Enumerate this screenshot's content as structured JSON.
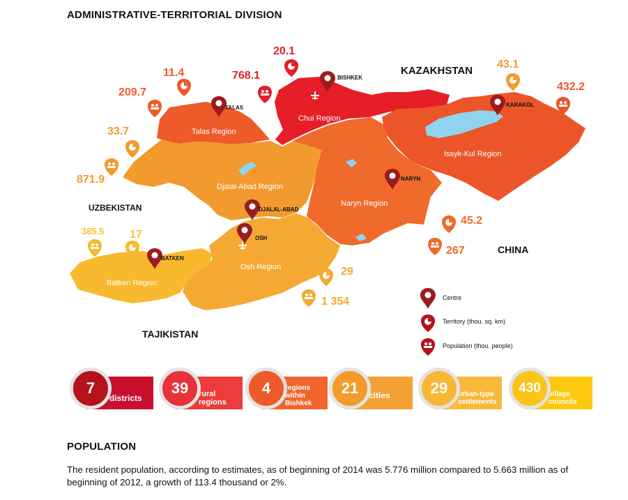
{
  "headings": {
    "admin": "ADMINISTRATIVE-TERRITORIAL DIVISION",
    "population": "POPULATION"
  },
  "countries": {
    "kazakhstan": "KAZAKHSTAN",
    "uzbekistan": "UZBEKISTAN",
    "china": "CHINA",
    "tajikistan": "TAJIKISTAN"
  },
  "regions": {
    "talas": "Talas Region",
    "chui": "Chui Region",
    "issyk_kul": "Issyk-Kul Region",
    "djalal_abad": "Djalal-Abad Region",
    "naryn": "Naryn Region",
    "osh": "Osh Region",
    "batken": "Batken Region"
  },
  "centers": {
    "bishkek": "BISHKEK",
    "talas": "TALAS",
    "karakol": "KARAKOL",
    "naryn": "NARYN",
    "djalal_abad": "DJALAL-ABAD",
    "osh": "OSH",
    "batken": "BATKEN"
  },
  "figures": {
    "chui_territory": "20.1",
    "chui_population": "768.1",
    "talas_territory": "11.4",
    "talas_population": "209.7",
    "djalal_abad_territory": "33.7",
    "djalal_abad_population": "871.9",
    "issyk_kul_territory": "43.1",
    "issyk_kul_population": "432.2",
    "naryn_territory": "45.2",
    "naryn_population": "267",
    "batken_population": "385.5",
    "batken_territory": "17",
    "osh_territory": "29",
    "osh_population": "1 354"
  },
  "legend": {
    "center": "Centre",
    "territory": "Territory (thou. sq. km)",
    "population": "Population (thou. people)"
  },
  "stats": [
    {
      "number": "7",
      "line1": "districts",
      "line2": "",
      "line3": "",
      "circle_color": "#b5121b",
      "bar_color": "#c8102e"
    },
    {
      "number": "39",
      "line1": "rural",
      "line2": "regions",
      "line3": "",
      "circle_color": "#e8313a",
      "bar_color": "#ee3b3b"
    },
    {
      "number": "4",
      "line1": "regions",
      "line2": "within",
      "line3": "Bishkek",
      "circle_color": "#ee5a2a",
      "bar_color": "#f0652c"
    },
    {
      "number": "21",
      "line1": "cities",
      "line2": "",
      "line3": "",
      "circle_color": "#f39a2a",
      "bar_color": "#f5a034"
    },
    {
      "number": "29",
      "line1": "urban-type",
      "line2": "settlements",
      "line3": "",
      "circle_color": "#f7b733",
      "bar_color": "#f8b93a"
    },
    {
      "number": "430",
      "line1": "village",
      "line2": "councils",
      "line3": "",
      "circle_color": "#fbc417",
      "bar_color": "#fdc90f"
    }
  ],
  "paragraph": "The resident population, according to estimates, as of beginning of 2014 was 5.776 million compared to 5.663 million as of beginning of 2012, a growth of 113.4 thousand or 2%.",
  "colors": {
    "chui": "#e51e27",
    "talas": "#ee5a2a",
    "issyk_kul": "#ec5528",
    "naryn": "#ef6a2b",
    "djalal_abad": "#f29a2e",
    "osh": "#f5a933",
    "batken": "#f8b92e",
    "lake": "#8fd3ef",
    "pin": "#9b1c1f"
  }
}
